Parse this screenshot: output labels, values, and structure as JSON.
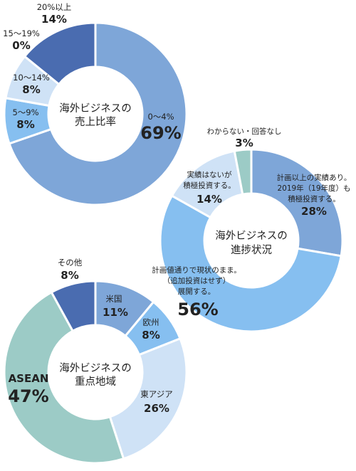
{
  "chart_data": [
    {
      "type": "pie",
      "center_label": [
        "海外ビジネスの",
        "売上比率"
      ],
      "categories": [
        "0〜4%",
        "5〜9%",
        "10〜14%",
        "15〜19%",
        "20%以上"
      ],
      "values": [
        69,
        8,
        8,
        0,
        14
      ],
      "value_labels": [
        "69%",
        "8%",
        "8%",
        "0%",
        "14%"
      ],
      "colors": [
        "#7ea6d8",
        "#86bff0",
        "#cfe2f6",
        "#4a6cb0",
        "#4a6cb0"
      ]
    },
    {
      "type": "pie",
      "center_label": [
        "海外ビジネスの",
        "進捗状況"
      ],
      "categories": [
        "計画以上の実績あり。2019年（19年度）も積極投資する。",
        "計画値通りで現状のまま。（追加投資はせず）展開する。",
        "実績はないが積極投資する。",
        "わからない・回答なし"
      ],
      "category_lines": [
        [
          "計画以上の実績あり。",
          "2019年（19年度）も",
          "積極投資する。"
        ],
        [
          "計画値通りで現状のまま。",
          "（追加投資はせず）",
          "展開する。"
        ],
        [
          "実績はないが",
          "積極投資する。"
        ],
        [
          "わからない・回答なし"
        ]
      ],
      "values": [
        28,
        56,
        14,
        3
      ],
      "value_labels": [
        "28%",
        "56%",
        "14%",
        "3%"
      ],
      "colors": [
        "#7ea6d8",
        "#86bff0",
        "#cfe2f6",
        "#9ccbc6"
      ]
    },
    {
      "type": "pie",
      "center_label": [
        "海外ビジネスの",
        "重点地域"
      ],
      "categories": [
        "米国",
        "欧州",
        "東アジア",
        "ASEAN",
        "その他"
      ],
      "values": [
        11,
        8,
        26,
        47,
        8
      ],
      "value_labels": [
        "11%",
        "8%",
        "26%",
        "47%",
        "8%"
      ],
      "colors": [
        "#7ea6d8",
        "#86bff0",
        "#cfe2f6",
        "#9ccbc6",
        "#4a6cb0"
      ]
    }
  ]
}
